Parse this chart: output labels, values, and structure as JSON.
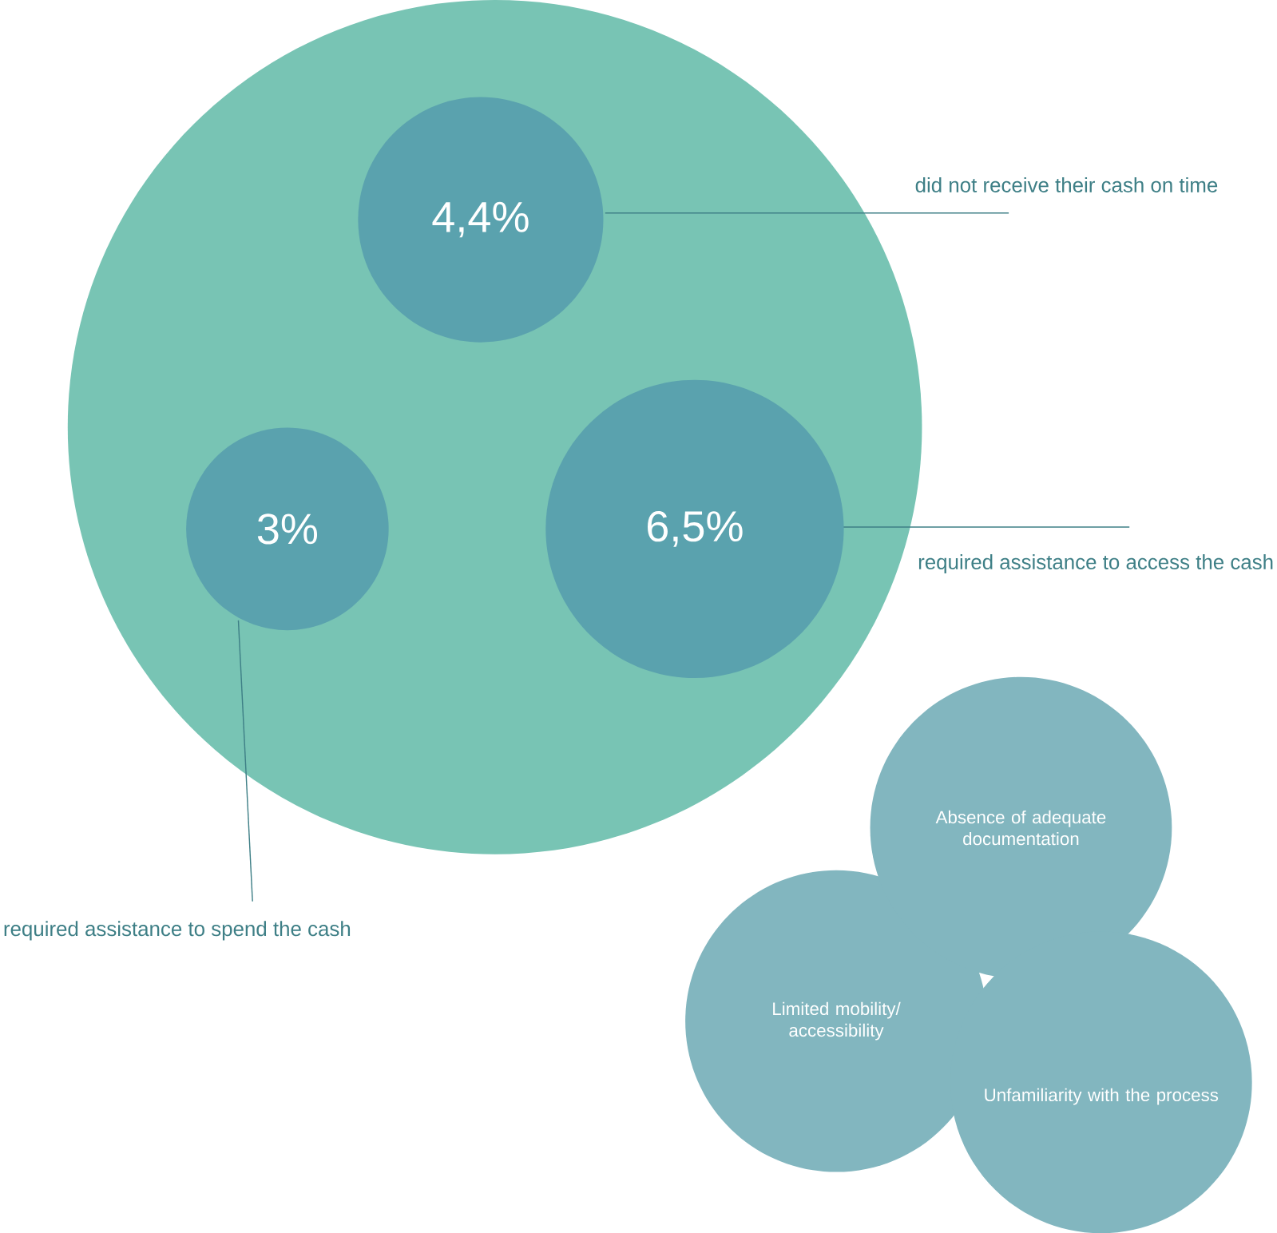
{
  "chart_data": {
    "type": "other",
    "categories": [
      "did not receive their cash on time",
      "required assistance to spend the cash",
      "required assistance to access the cash"
    ],
    "values": [
      4.4,
      3,
      6.5
    ],
    "value_labels": [
      "4,4%",
      "3%",
      "6,5%"
    ],
    "color": "#5aa2ae",
    "annotations": [
      "Absence of adequate documentation",
      "Limited mobility/ accessibility",
      "Unfamiliarity with the process"
    ]
  }
}
